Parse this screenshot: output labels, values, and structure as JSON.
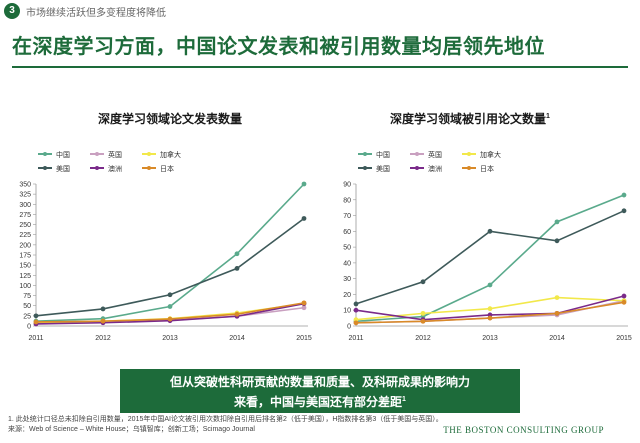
{
  "topbar": {
    "page_number": "3",
    "title": "市场继续活跃但多变程度将降低"
  },
  "headline": "在深度学习方面，中国论文发表和被引用数量均居领先地位",
  "charts": {
    "left": {
      "title": "深度学习领域论文发表数量",
      "sup": ""
    },
    "right": {
      "title": "深度学习领域被引用论文数量",
      "sup": "1"
    }
  },
  "colors": {
    "中国": "#5aaa8c",
    "英国": "#c9a0c0",
    "加拿大": "#f2e84a",
    "美国": "#3e5a5a",
    "澳洲": "#7a2a8a",
    "日本": "#d98a28"
  },
  "chart_data": [
    {
      "type": "line",
      "title": "深度学习领域论文发表数量",
      "x": [
        "2011",
        "2012",
        "2013",
        "2014",
        "2015"
      ],
      "ylim": [
        0,
        350
      ],
      "yticks": [
        0,
        25,
        50,
        75,
        100,
        125,
        150,
        175,
        200,
        225,
        250,
        275,
        300,
        325,
        350
      ],
      "legend": [
        "中国",
        "英国",
        "加拿大",
        "美国",
        "澳洲",
        "日本"
      ],
      "series": [
        {
          "name": "中国",
          "values": [
            12,
            18,
            48,
            178,
            350
          ]
        },
        {
          "name": "英国",
          "values": [
            8,
            10,
            14,
            24,
            45
          ]
        },
        {
          "name": "加拿大",
          "values": [
            6,
            12,
            18,
            32,
            55
          ]
        },
        {
          "name": "美国",
          "values": [
            25,
            42,
            77,
            142,
            265
          ]
        },
        {
          "name": "澳洲",
          "values": [
            5,
            8,
            13,
            24,
            55
          ]
        },
        {
          "name": "日本",
          "values": [
            10,
            12,
            17,
            29,
            57
          ]
        }
      ]
    },
    {
      "type": "line",
      "title": "深度学习领域被引用论文数量",
      "x": [
        "2011",
        "2012",
        "2013",
        "2014",
        "2015"
      ],
      "ylim": [
        0,
        90
      ],
      "yticks": [
        0,
        10,
        20,
        30,
        40,
        50,
        60,
        70,
        80,
        90
      ],
      "legend": [
        "中国",
        "英国",
        "加拿大",
        "美国",
        "澳洲",
        "日本"
      ],
      "series": [
        {
          "name": "中国",
          "values": [
            3,
            6,
            26,
            66,
            83
          ]
        },
        {
          "name": "英国",
          "values": [
            2,
            3,
            5,
            7,
            16
          ]
        },
        {
          "name": "加拿大",
          "values": [
            4,
            8,
            11,
            18,
            16
          ]
        },
        {
          "name": "美国",
          "values": [
            14,
            28,
            60,
            54,
            73
          ]
        },
        {
          "name": "澳洲",
          "values": [
            10,
            4,
            7,
            8,
            19
          ]
        },
        {
          "name": "日本",
          "values": [
            2,
            3,
            5,
            8,
            15
          ]
        }
      ]
    }
  ],
  "callout": {
    "line1": "但从突破性科研贡献的数量和质量、及科研成果的影响力",
    "line2": "来看，中国与美国还有部分差距",
    "sup": "1"
  },
  "footnote": {
    "line1": "1. 此处统计口径总未扣除自引用数量，2015年中国AI论文被引用次数扣除自引用后排名第2（低于美国），H指数排名第3（低于美国与英国）。",
    "line2": "来源：Web of Science – White House；乌镇智库；创新工场；Scimago Journal",
    "logo": "THE BOSTON CONSULTING GROUP"
  }
}
